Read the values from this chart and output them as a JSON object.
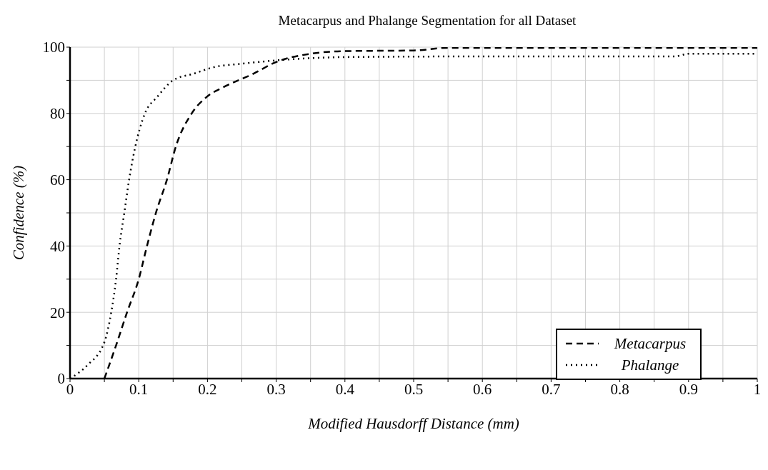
{
  "chart_data": {
    "type": "line",
    "title": "Metacarpus and Phalange Segmentation for all Dataset",
    "xlabel": "Modified Hausdorff Distance (mm)",
    "ylabel": "Confidence (%)",
    "xlim": [
      0,
      1
    ],
    "ylim": [
      0,
      100
    ],
    "xticks": [
      0,
      {
        "value": 0.05,
        "label": null
      },
      0.1,
      {
        "value": 0.15,
        "label": null
      },
      0.2,
      {
        "value": 0.25,
        "label": null
      },
      0.3,
      {
        "value": 0.35,
        "label": null
      },
      0.4,
      {
        "value": 0.45,
        "label": null
      },
      0.5,
      {
        "value": 0.55,
        "label": null
      },
      0.6,
      {
        "value": 0.65,
        "label": null
      },
      0.7,
      {
        "value": 0.75,
        "label": null
      },
      0.8,
      {
        "value": 0.85,
        "label": null
      },
      0.9,
      {
        "value": 0.95,
        "label": null
      },
      1
    ],
    "yticks": [
      0,
      {
        "value": 10,
        "label": null
      },
      20,
      {
        "value": 30,
        "label": null
      },
      40,
      {
        "value": 50,
        "label": null
      },
      60,
      {
        "value": 70,
        "label": null
      },
      80,
      {
        "value": 90,
        "label": null
      },
      100
    ],
    "grid": true,
    "legend": "bottom right",
    "marker": "none",
    "series": [
      {
        "name": "Metacarpus",
        "color": "#000000",
        "line_style": "dashed",
        "x": [
          0.05,
          0.067,
          0.083,
          0.1,
          0.112,
          0.125,
          0.141,
          0.154,
          0.177,
          0.199,
          0.224,
          0.267,
          0.3,
          0.35,
          0.4,
          0.5,
          0.551,
          0.6,
          0.8,
          1
        ],
        "values": [
          0,
          10,
          20,
          30,
          40,
          50,
          60,
          70,
          80,
          85,
          88,
          92,
          95.5,
          98,
          98.8,
          99,
          99.8,
          99.8,
          99.8,
          99.8
        ]
      },
      {
        "name": "Phalange",
        "color": "#000000",
        "line_style": "dotted",
        "x": [
          0,
          0.025,
          0.05,
          0.06,
          0.067,
          0.072,
          0.079,
          0.086,
          0.095,
          0.101,
          0.109,
          0.127,
          0.15,
          0.18,
          0.21,
          0.25,
          0.3,
          0.4,
          0.6,
          0.88,
          0.9,
          1
        ],
        "values": [
          0,
          4,
          11,
          20,
          30,
          40,
          50,
          60,
          70,
          75,
          80,
          85,
          90,
          92,
          94,
          95,
          96,
          97,
          97.2,
          97.2,
          98,
          98
        ]
      }
    ]
  }
}
